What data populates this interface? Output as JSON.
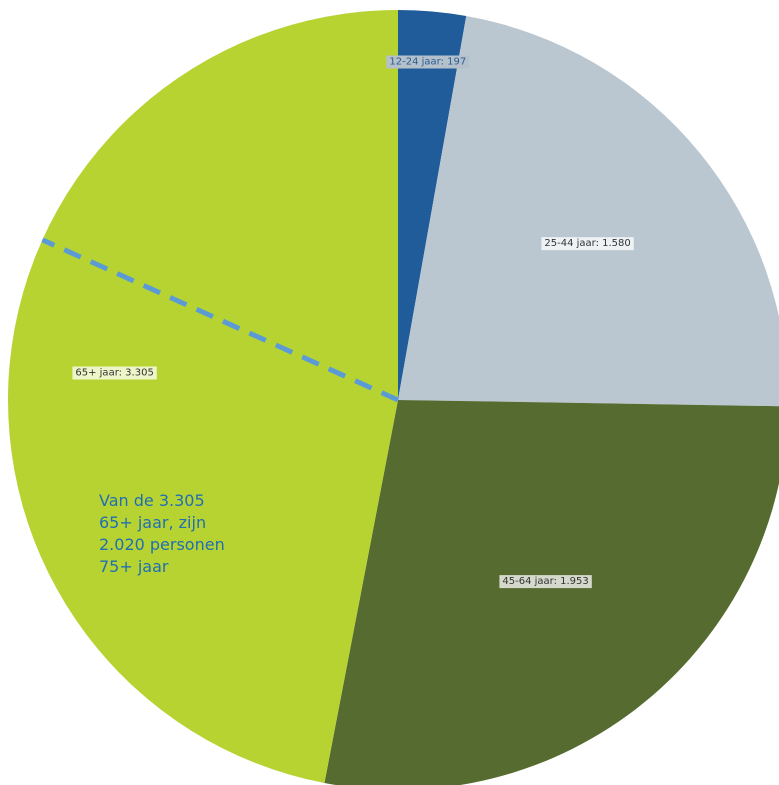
{
  "chart_data": {
    "type": "pie",
    "start": "top",
    "direction": "clockwise",
    "slices": [
      {
        "label": "12-24 jaar: 197",
        "category": "12-24 jaar",
        "value": 197,
        "color": "#1f5c99",
        "label_bg": "#b4c0cc",
        "label_fg": "#2b5f8f"
      },
      {
        "label": "25-44 jaar: 1.580",
        "category": "25-44 jaar",
        "value": 1580,
        "color": "#bac7d1",
        "label_bg": "#eef2f5",
        "label_fg": "#333333"
      },
      {
        "label": "45-64 jaar: 1.953",
        "category": "45-64 jaar",
        "value": 1953,
        "color": "#556b2f",
        "label_bg": "#d4d9cc",
        "label_fg": "#333333"
      },
      {
        "label": "65+ jaar: 3.305",
        "category": "65+ jaar",
        "value": 3305,
        "color": "#b7d332",
        "label_bg": "#eef5c9",
        "label_fg": "#333333"
      }
    ],
    "subdivision": {
      "within": "65+ jaar",
      "value": 2020,
      "line_color": "#5b9bd5",
      "line_style": "dashed"
    },
    "annotation": {
      "lines": [
        "Van de 3.305",
        "65+ jaar, zijn",
        "2.020 personen",
        "75+ jaar"
      ],
      "color": "#1f6fb2"
    }
  }
}
